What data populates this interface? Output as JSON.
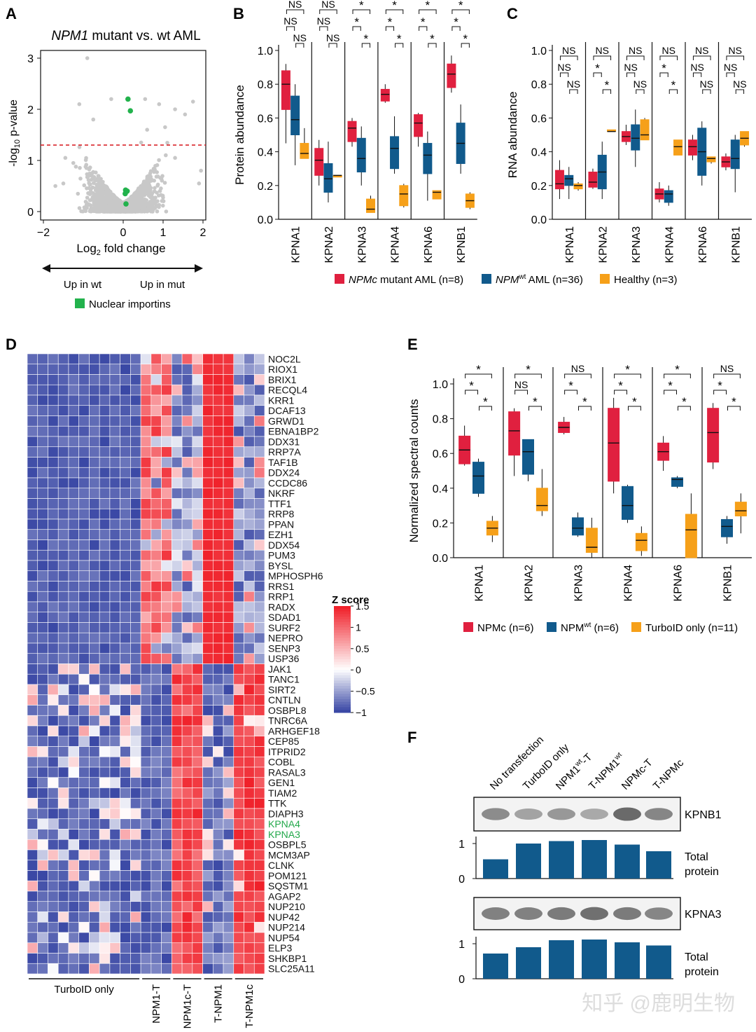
{
  "panel_letters": [
    "A",
    "B",
    "C",
    "D",
    "E",
    "F"
  ],
  "colors": {
    "npmc": "#e0203f",
    "npmwt": "#115a8c",
    "healthy": "#f6a019",
    "turbo": "#f6a019",
    "volcano_grey": "#c8c8c8",
    "volcano_green": "#22b24c",
    "threshold": "#d9262c",
    "heat_low": "#3a48a5",
    "heat_mid": "#ffffff",
    "heat_high": "#f0212a",
    "bar": "#115a8c",
    "highlight_gene": "#22a84a"
  },
  "panelA": {
    "title_gene": "NPM1",
    "title_rest": " mutant vs. wt AML",
    "ylabel_pre": "-log",
    "ylabel_sub": "10",
    "ylabel_post": " p-value",
    "xlabel_pre": "Log",
    "xlabel_sub": "2",
    "xlabel_post": " fold change",
    "xticks": [
      "−2",
      "0",
      "1",
      "2"
    ],
    "yticks": [
      "0",
      "1",
      "2",
      "3"
    ],
    "arrow_left": "Up in wt",
    "arrow_right": "Up in mut",
    "legend": "Nuclear importins"
  },
  "panelB": {
    "ylabel": "Protein abundance",
    "yticks": [
      "0.0",
      "0.2",
      "0.4",
      "0.6",
      "0.8",
      "1.0"
    ],
    "categories": [
      "KPNA1",
      "KPNA2",
      "KPNA3",
      "KPNA4",
      "KPNA6",
      "KPNB1"
    ],
    "sig": [
      [
        "NS",
        "NS",
        "NS"
      ],
      [
        "NS",
        "NS",
        "NS"
      ],
      [
        "*",
        "*",
        "*"
      ],
      [
        "*",
        "*",
        "*"
      ],
      [
        "*",
        "*",
        "*"
      ],
      [
        "*",
        "*",
        "*"
      ]
    ]
  },
  "panelC": {
    "ylabel": "RNA abundance",
    "yticks": [
      "0.0",
      "0.2",
      "0.4",
      "0.6",
      "0.8",
      "1.0"
    ],
    "categories": [
      "KPNA1",
      "KPNA2",
      "KPNA3",
      "KPNA4",
      "KPNA6",
      "KPNB1"
    ],
    "sig": [
      [
        "NS",
        "NS",
        "NS"
      ],
      [
        "*",
        "NS",
        "*"
      ],
      [
        "NS",
        "NS",
        "NS"
      ],
      [
        "*",
        "NS",
        "*"
      ],
      [
        "NS",
        "NS",
        "NS"
      ],
      [
        "NS",
        "NS",
        "NS"
      ]
    ]
  },
  "legendBC": [
    {
      "label_it": "NPMc",
      "label_sup": "",
      "label_rest": " mutant AML (n=8)",
      "color": "npmc"
    },
    {
      "label_it": "NPM",
      "label_sup": "wt",
      "label_rest": " AML (n=36)",
      "color": "npmwt"
    },
    {
      "label_it": "",
      "label_sup": "",
      "label_rest": "Healthy (n=3)",
      "color": "healthy"
    }
  ],
  "panelD": {
    "genes": [
      "NOC2L",
      "RIOX1",
      "BRIX1",
      "RECQL4",
      "KRR1",
      "DCAF13",
      "GRWD1",
      "EBNA1BP2",
      "DDX31",
      "RRP7A",
      "TAF1B",
      "DDX24",
      "CCDC86",
      "NKRF",
      "TTF1",
      "RRP8",
      "PPAN",
      "EZH1",
      "DDX54",
      "PUM3",
      "BYSL",
      "MPHOSPH6",
      "RRS1",
      "RRP1",
      "RADX",
      "SDAD1",
      "SURF2",
      "NEPRO",
      "SENP3",
      "USP36",
      "JAK1",
      "TANC1",
      "SIRT2",
      "CNTLN",
      "OSBPL8",
      "TNRC6A",
      "ARHGEF18",
      "CEP85",
      "ITPRID2",
      "COBL",
      "RASAL3",
      "GEN1",
      "TIAM2",
      "TTK",
      "DIAPH3",
      "KPNA4",
      "KPNA3",
      "OSBPL5",
      "MCM3AP",
      "CLNK",
      "POM121",
      "SQSTM1",
      "AGAP2",
      "NUP210",
      "NUP42",
      "NUP214",
      "NUP54",
      "ELP3",
      "SHKBP1",
      "SLC25A11"
    ],
    "highlight": [
      "KPNA4",
      "KPNA3"
    ],
    "groups": [
      {
        "label": "TurboID only",
        "n": 11
      },
      {
        "label": "NPM1-T",
        "n": 3
      },
      {
        "label": "NPM1c-T",
        "n": 3
      },
      {
        "label": "T-NPM1",
        "n": 3
      },
      {
        "label": "T-NPM1c",
        "n": 3
      }
    ],
    "scale_title": "Z score",
    "scale_ticks": [
      "1.5",
      "1",
      "0.5",
      "0",
      "−0.5",
      "−1"
    ]
  },
  "panelE": {
    "ylabel": "Normalized spectral counts",
    "yticks": [
      "0.0",
      "0.2",
      "0.4",
      "0.6",
      "0.8",
      "1.0"
    ],
    "categories": [
      "KPNA1",
      "KPNA2",
      "KPNA3",
      "KPNA4",
      "KPNA6",
      "KPNB1"
    ],
    "sig": [
      [
        "*",
        "*",
        "*"
      ],
      [
        "NS",
        "*",
        "*"
      ],
      [
        "*",
        "NS",
        "*"
      ],
      [
        "*",
        "*",
        "*"
      ],
      [
        "*",
        "*",
        "*"
      ],
      [
        "*",
        "NS",
        "*"
      ]
    ],
    "legend": [
      {
        "label": "NPMc (n=6)",
        "sup": "",
        "after": "",
        "color": "npmc"
      },
      {
        "label": "NPM",
        "sup": "wt",
        "after": " (n=6)",
        "color": "npmwt"
      },
      {
        "label": "TurboID only (n=11)",
        "sup": "",
        "after": "",
        "color": "turbo"
      }
    ]
  },
  "panelF": {
    "lanes": [
      {
        "pre": "No transfection",
        "sup": "",
        "post": ""
      },
      {
        "pre": "TurboID only",
        "sup": "",
        "post": ""
      },
      {
        "pre": "NPM1",
        "sup": "wt",
        "post": "-T"
      },
      {
        "pre": "T-NPM1",
        "sup": "wt",
        "post": ""
      },
      {
        "pre": "NPMc-T",
        "sup": "",
        "post": ""
      },
      {
        "pre": "T-NPMc",
        "sup": "",
        "post": ""
      }
    ],
    "blot1_label": "KPNB1",
    "blot2_label": "KPNA3",
    "total_label_1": "Total",
    "total_label_2": "protein",
    "bar_ticks": [
      "0",
      "1"
    ]
  },
  "watermark": "知乎 @鹿明生物",
  "chart_data": [
    {
      "panel": "A",
      "type": "scatter",
      "title": "NPM1 mutant vs. wt AML",
      "xlabel": "Log2 fold change",
      "ylabel": "-log10 p-value",
      "xlim": [
        -2,
        2
      ],
      "ylim": [
        -0.1,
        3.2
      ],
      "threshold_y": 1.3,
      "series": [
        {
          "name": "Nuclear importins",
          "color": "volcano_green",
          "points": [
            [
              0.12,
              2.2
            ],
            [
              0.18,
              1.97
            ],
            [
              0.06,
              0.42
            ],
            [
              0.1,
              0.4
            ],
            [
              0.05,
              0.35
            ],
            [
              0.07,
              0.15
            ]
          ]
        },
        {
          "color": "volcano_grey",
          "points": [
            [
              -0.9,
              3.0
            ],
            [
              -1.1,
              2.1
            ],
            [
              -0.75,
              1.8
            ],
            [
              -0.3,
              2.2
            ],
            [
              0.55,
              2.2
            ],
            [
              0.9,
              2.1
            ],
            [
              1.3,
              2.0
            ],
            [
              1.55,
              1.9
            ],
            [
              1.75,
              2.15
            ],
            [
              0.6,
              1.6
            ],
            [
              0.45,
              1.35
            ],
            [
              1.05,
              1.65
            ],
            [
              -1.45,
              1.05
            ],
            [
              -1.25,
              0.95
            ],
            [
              1.3,
              1.05
            ],
            [
              1.9,
              0.55
            ],
            [
              1.95,
              0.8
            ],
            [
              -1.7,
              0.5
            ],
            [
              -1.5,
              0.55
            ]
          ]
        }
      ]
    },
    {
      "panel": "B",
      "type": "box",
      "ylabel": "Protein abundance",
      "ylim": [
        0,
        1
      ],
      "categories": [
        "KPNA1",
        "KPNA2",
        "KPNA3",
        "KPNA4",
        "KPNA6",
        "KPNB1"
      ],
      "series": [
        {
          "name": "NPMc mutant AML (n=8)",
          "color": "npmc",
          "boxes": [
            [
              0.45,
              0.65,
              0.8,
              0.88,
              0.92
            ],
            [
              0.2,
              0.26,
              0.35,
              0.42,
              0.47
            ],
            [
              0.43,
              0.46,
              0.54,
              0.58,
              0.6
            ],
            [
              0.69,
              0.7,
              0.74,
              0.77,
              0.8
            ],
            [
              0.43,
              0.49,
              0.57,
              0.62,
              0.63
            ],
            [
              0.75,
              0.78,
              0.86,
              0.92,
              0.97
            ]
          ]
        },
        {
          "name": "NPMwt AML (n=36)",
          "color": "npmwt",
          "boxes": [
            [
              0.32,
              0.5,
              0.59,
              0.73,
              0.8
            ],
            [
              0.1,
              0.16,
              0.24,
              0.33,
              0.46
            ],
            [
              0.2,
              0.28,
              0.36,
              0.48,
              0.55
            ],
            [
              0.27,
              0.3,
              0.42,
              0.49,
              0.61
            ],
            [
              0.11,
              0.27,
              0.38,
              0.45,
              0.52
            ],
            [
              0.27,
              0.33,
              0.45,
              0.57,
              0.68
            ]
          ]
        },
        {
          "name": "Healthy (n=3)",
          "color": "healthy",
          "boxes": [
            [
              0.36,
              0.36,
              0.39,
              0.45,
              0.54
            ],
            [
              0.25,
              0.25,
              0.26,
              0.26,
              0.26
            ],
            [
              0.04,
              0.04,
              0.06,
              0.12,
              0.14
            ],
            [
              0.07,
              0.08,
              0.15,
              0.2,
              0.21
            ],
            [
              0.12,
              0.12,
              0.16,
              0.17,
              0.17
            ],
            [
              0.06,
              0.07,
              0.11,
              0.15,
              0.16
            ]
          ]
        }
      ]
    },
    {
      "panel": "C",
      "type": "box",
      "ylabel": "RNA abundance",
      "ylim": [
        0,
        1
      ],
      "categories": [
        "KPNA1",
        "KPNA2",
        "KPNA3",
        "KPNA4",
        "KPNA6",
        "KPNB1"
      ],
      "series": [
        {
          "name": "NPMc mutant AML (n=8)",
          "color": "npmc",
          "boxes": [
            [
              0.12,
              0.18,
              0.21,
              0.29,
              0.35
            ],
            [
              0.18,
              0.19,
              0.22,
              0.28,
              0.3
            ],
            [
              0.44,
              0.46,
              0.49,
              0.52,
              0.56
            ],
            [
              0.1,
              0.12,
              0.15,
              0.18,
              0.22
            ],
            [
              0.35,
              0.38,
              0.43,
              0.47,
              0.5
            ],
            [
              0.29,
              0.31,
              0.34,
              0.37,
              0.39
            ]
          ]
        },
        {
          "name": "NPMwt AML (n=36)",
          "color": "npmwt",
          "boxes": [
            [
              0.12,
              0.2,
              0.24,
              0.26,
              0.31
            ],
            [
              0.12,
              0.18,
              0.28,
              0.38,
              0.46
            ],
            [
              0.31,
              0.41,
              0.48,
              0.56,
              0.65
            ],
            [
              0.08,
              0.1,
              0.15,
              0.17,
              0.2
            ],
            [
              0.2,
              0.26,
              0.4,
              0.54,
              0.58
            ],
            [
              0.16,
              0.3,
              0.36,
              0.47,
              0.5
            ]
          ]
        },
        {
          "name": "Healthy (n=3)",
          "color": "healthy",
          "boxes": [
            [
              0.17,
              0.18,
              0.2,
              0.21,
              0.22
            ],
            [
              0.52,
              0.52,
              0.52,
              0.53,
              0.53
            ],
            [
              0.47,
              0.47,
              0.5,
              0.59,
              0.6
            ],
            [
              0.38,
              0.38,
              0.43,
              0.47,
              0.47
            ],
            [
              0.33,
              0.34,
              0.36,
              0.37,
              0.37
            ],
            [
              0.43,
              0.44,
              0.48,
              0.52,
              0.52
            ]
          ]
        }
      ]
    },
    {
      "panel": "D",
      "type": "heatmap",
      "rows": 60,
      "columns": 23,
      "z_range": [
        -1,
        1.5
      ],
      "note_columns": "11 TurboID only, 3 NPM1-T, 3 NPM1c-T, 3 T-NPM1, 3 T-NPM1c"
    },
    {
      "panel": "E",
      "type": "box",
      "ylabel": "Normalized spectral counts",
      "ylim": [
        0,
        1
      ],
      "categories": [
        "KPNA1",
        "KPNA2",
        "KPNA3",
        "KPNA4",
        "KPNA6",
        "KPNB1"
      ],
      "series": [
        {
          "name": "NPMc (n=6)",
          "color": "npmc",
          "boxes": [
            [
              0.53,
              0.54,
              0.62,
              0.7,
              0.76
            ],
            [
              0.47,
              0.59,
              0.73,
              0.84,
              0.86
            ],
            [
              0.71,
              0.72,
              0.75,
              0.78,
              0.81
            ],
            [
              0.37,
              0.44,
              0.66,
              0.86,
              0.92
            ],
            [
              0.5,
              0.56,
              0.61,
              0.66,
              0.7
            ],
            [
              0.51,
              0.55,
              0.72,
              0.86,
              0.89
            ]
          ]
        },
        {
          "name": "NPMwt (n=6)",
          "color": "npmwt",
          "boxes": [
            [
              0.35,
              0.37,
              0.47,
              0.55,
              0.57
            ],
            [
              0.44,
              0.48,
              0.61,
              0.68,
              0.68
            ],
            [
              0.12,
              0.13,
              0.17,
              0.23,
              0.26
            ],
            [
              0.2,
              0.22,
              0.3,
              0.41,
              0.42
            ],
            [
              0.4,
              0.41,
              0.45,
              0.46,
              0.47
            ],
            [
              0.08,
              0.12,
              0.18,
              0.22,
              0.24
            ]
          ]
        },
        {
          "name": "TurboID only (n=11)",
          "color": "turbo",
          "boxes": [
            [
              0.09,
              0.13,
              0.17,
              0.21,
              0.24
            ],
            [
              0.24,
              0.27,
              0.3,
              0.4,
              0.51
            ],
            [
              0.0,
              0.03,
              0.06,
              0.17,
              0.23
            ],
            [
              0.01,
              0.04,
              0.1,
              0.14,
              0.18
            ],
            [
              0.0,
              0.0,
              0.16,
              0.25,
              0.37
            ],
            [
              0.14,
              0.24,
              0.27,
              0.32,
              0.37
            ]
          ]
        }
      ]
    },
    {
      "panel": "F",
      "type": "bar",
      "categories": [
        "No transfection",
        "TurboID only",
        "NPM1wt-T",
        "T-NPM1wt",
        "NPMc-T",
        "T-NPMc"
      ],
      "series": [
        {
          "name": "Total protein (KPNB1 blot)",
          "values": [
            0.55,
            1.0,
            1.07,
            1.1,
            0.97,
            0.78
          ]
        },
        {
          "name": "Total protein (KPNA3 blot)",
          "values": [
            0.72,
            0.9,
            1.1,
            1.12,
            1.04,
            0.95
          ]
        }
      ],
      "ylim": [
        0,
        1.2
      ]
    }
  ]
}
